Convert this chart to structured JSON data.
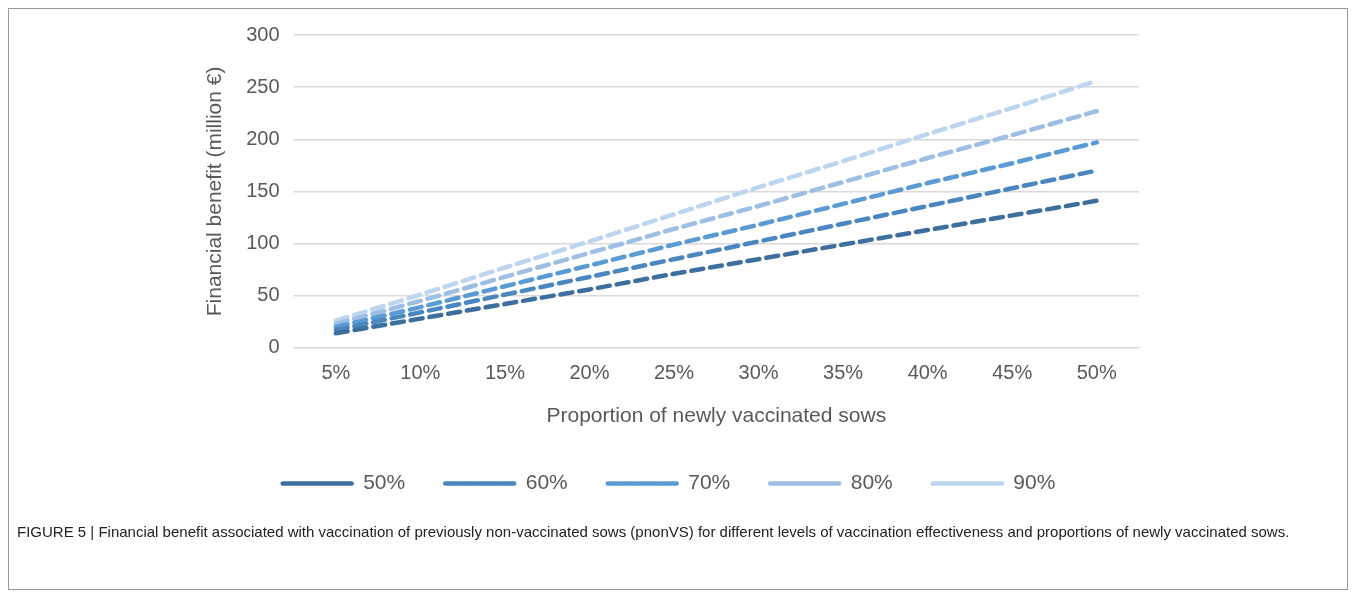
{
  "chart_data": {
    "type": "line",
    "xlabel": "Proportion of newly vaccinated sows",
    "ylabel": "Financial benefit (million €)",
    "categories": [
      "5%",
      "10%",
      "15%",
      "20%",
      "25%",
      "30%",
      "35%",
      "40%",
      "45%",
      "50%"
    ],
    "series": [
      {
        "name": "50%",
        "color": "#3d6f9e",
        "values": [
          14,
          28,
          42,
          56,
          71,
          85,
          99,
          113,
          127,
          141
        ]
      },
      {
        "name": "60%",
        "color": "#4a86c0",
        "values": [
          17,
          34,
          51,
          68,
          85,
          102,
          119,
          136,
          153,
          170
        ]
      },
      {
        "name": "70%",
        "color": "#5b9bd5",
        "values": [
          20,
          39,
          59,
          79,
          99,
          118,
          138,
          158,
          177,
          197
        ]
      },
      {
        "name": "80%",
        "color": "#9dbfe3",
        "values": [
          23,
          45,
          68,
          91,
          114,
          136,
          159,
          182,
          204,
          227
        ]
      },
      {
        "name": "90%",
        "color": "#bdd5ee",
        "values": [
          26,
          51,
          77,
          102,
          128,
          154,
          179,
          205,
          230,
          256
        ]
      }
    ],
    "ylim": [
      0,
      300
    ],
    "yticks": [
      0,
      50,
      100,
      150,
      200,
      250,
      300
    ],
    "grid": "y",
    "legend": "bottom",
    "line_style": "dashed",
    "marker": "none",
    "annotations": [
      "FIGURE 5 | Financial benefit associated with vaccination of previously non-vaccinated sows (pnonVS) for different levels of vaccination effectiveness and proportions of newly vaccinated sows."
    ]
  }
}
